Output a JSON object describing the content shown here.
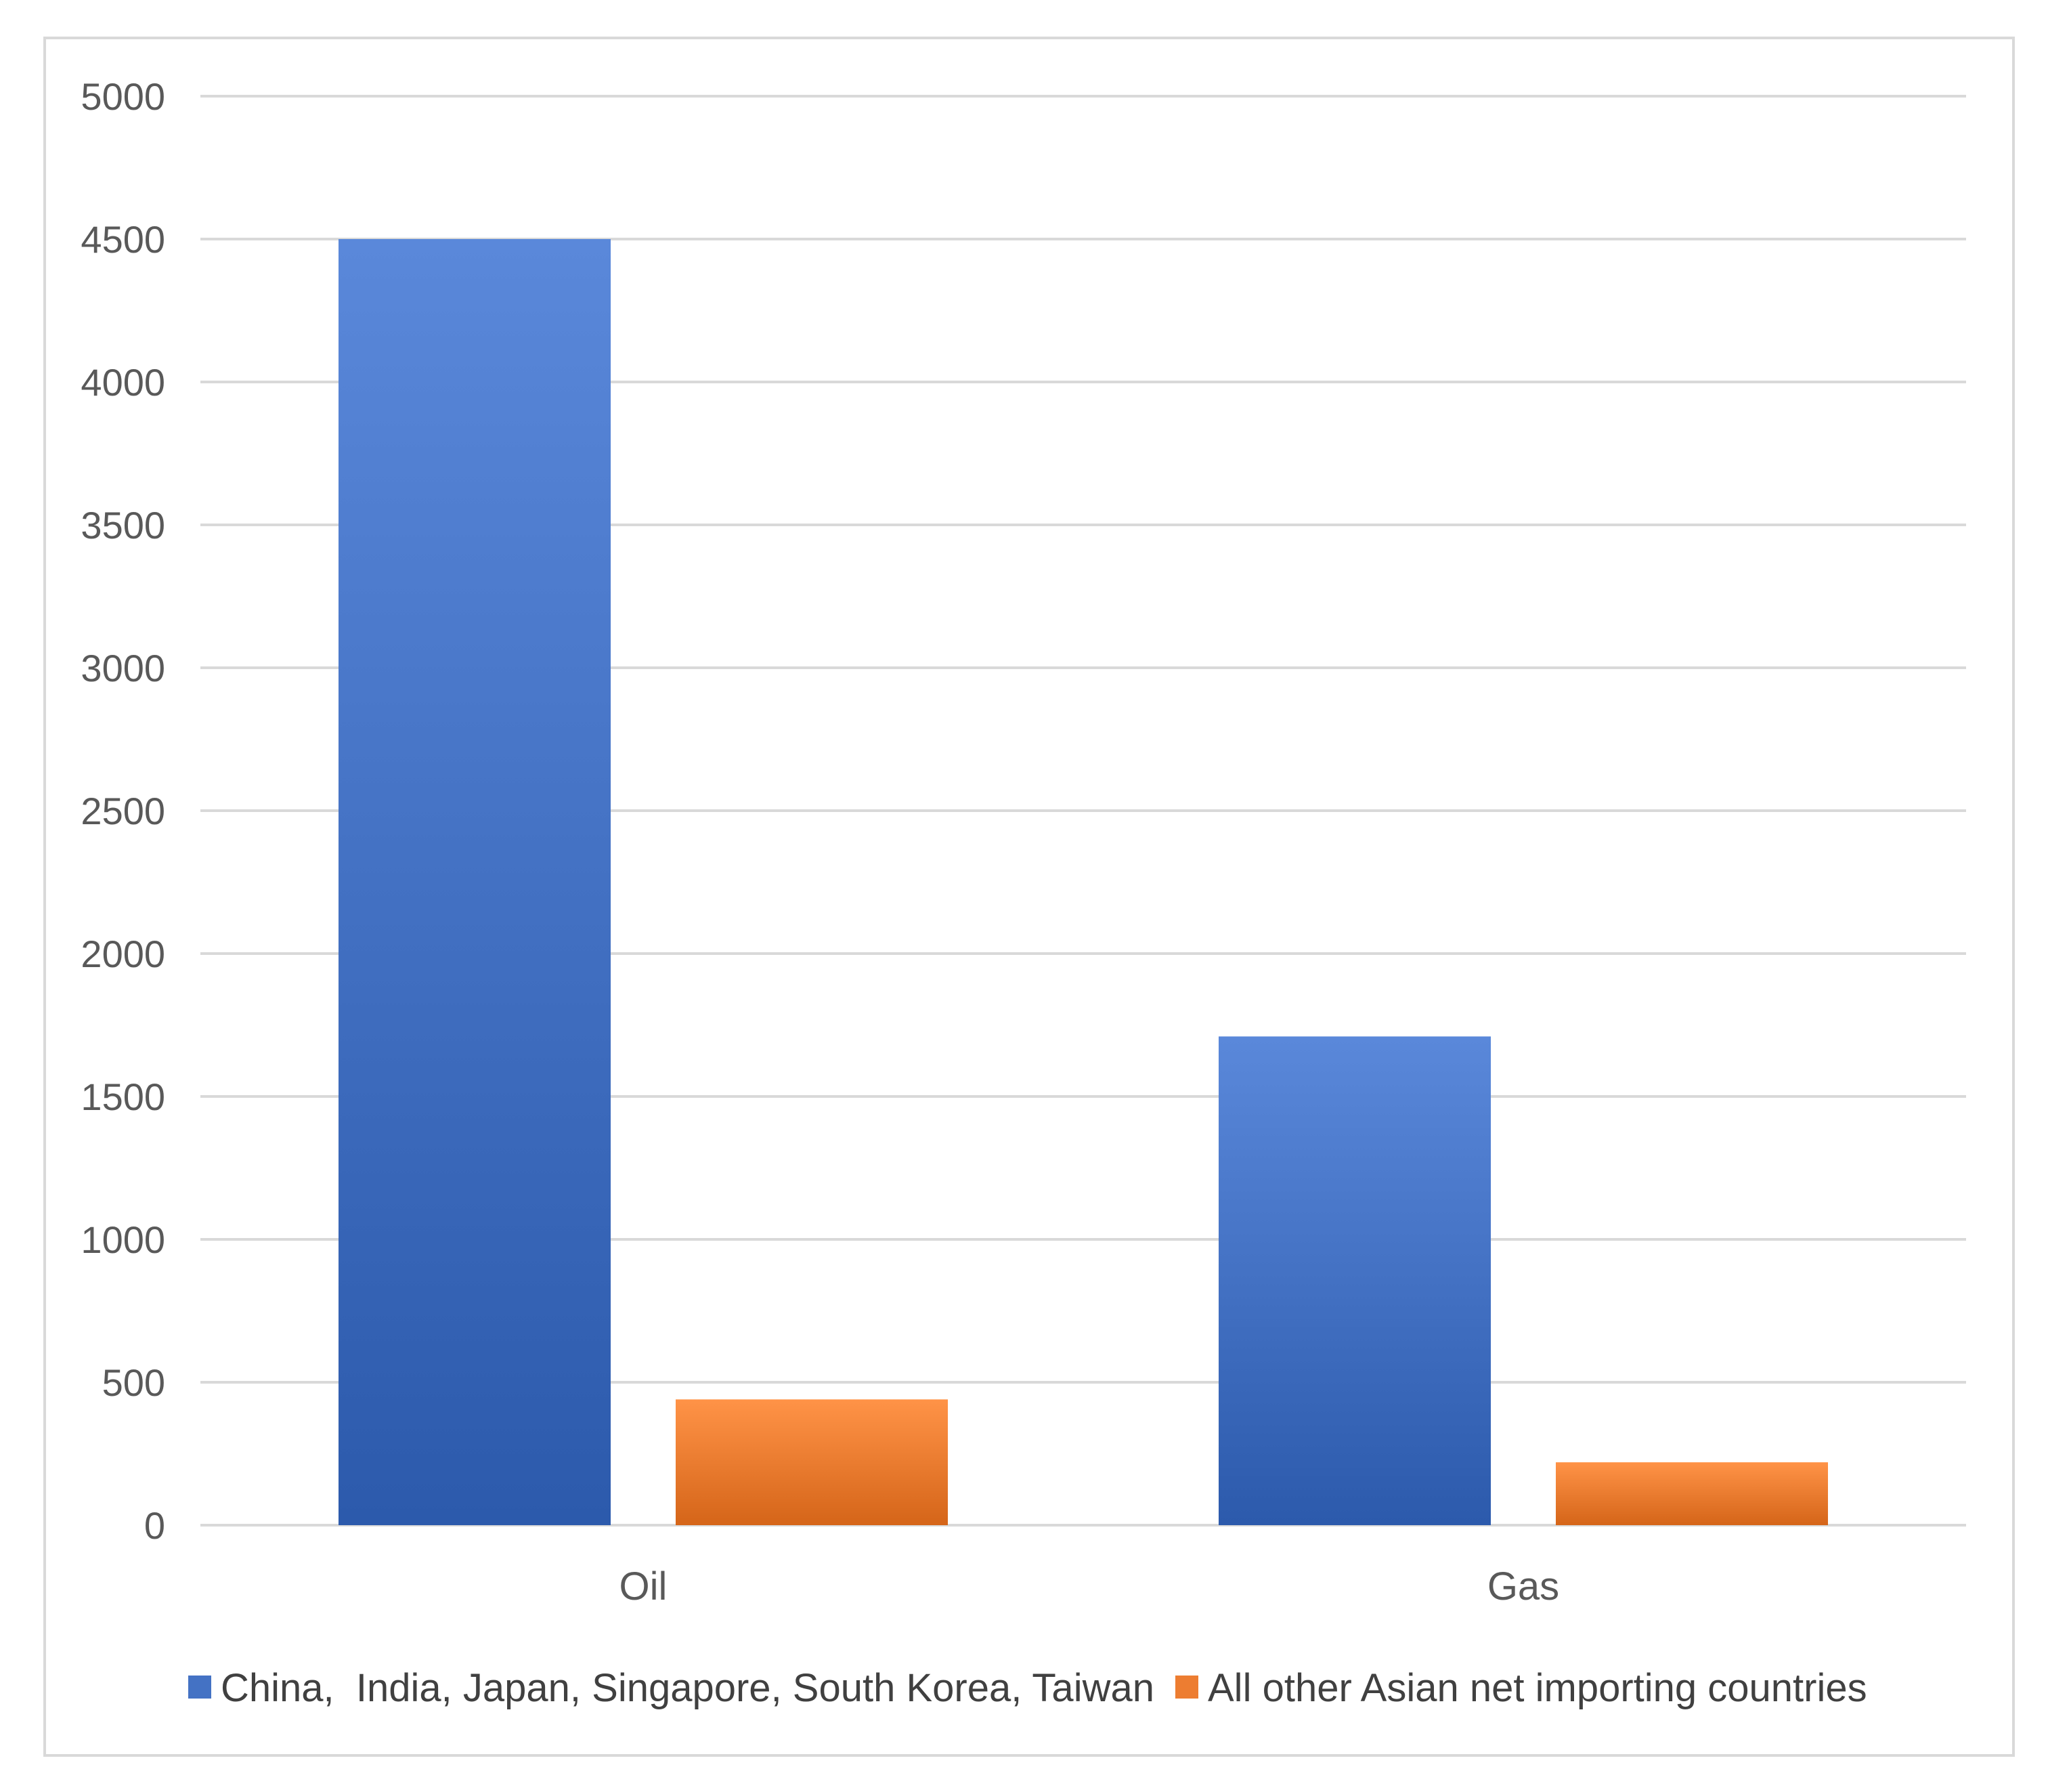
{
  "chart_data": {
    "type": "bar",
    "categories": [
      "Oil",
      "Gas"
    ],
    "series": [
      {
        "name": "China,  India, Japan, Singapore, South Korea, Taiwan",
        "values": [
          4500,
          1710
        ],
        "color": "#4472c4"
      },
      {
        "name": "All other Asian net importing countries",
        "values": [
          440,
          220
        ],
        "color": "#ed7d31"
      }
    ],
    "yticks": [
      "0",
      "500",
      "1000",
      "1500",
      "2000",
      "2500",
      "3000",
      "3500",
      "4000",
      "4500",
      "5000"
    ],
    "ylim": [
      0,
      5000
    ],
    "grid": true,
    "legend_position": "bottom"
  }
}
